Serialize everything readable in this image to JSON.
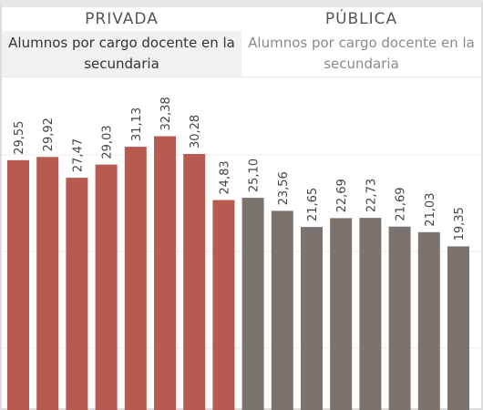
{
  "panels": [
    {
      "title": "PRIVADA",
      "subtitle": "Alumnos por cargo docente en la secundaria"
    },
    {
      "title": "PÚBLICA",
      "subtitle": "Alumnos por cargo docente en la secundaria"
    }
  ],
  "colors": {
    "privada": "#b85a4f",
    "publica": "#7b746e",
    "gridline": "#ebebeb"
  },
  "chart_data": [
    {
      "type": "bar",
      "title": "PRIVADA",
      "subtitle": "Alumnos por cargo docente en la secundaria",
      "values": [
        29.55,
        29.92,
        27.47,
        29.03,
        31.13,
        32.38,
        30.28,
        24.83
      ],
      "labels": [
        "29,55",
        "29,92",
        "27,47",
        "29,03",
        "31,13",
        "32,38",
        "30,28",
        "24,83"
      ],
      "ylim": [
        0,
        42
      ],
      "color": "#b85a4f"
    },
    {
      "type": "bar",
      "title": "PÚBLICA",
      "subtitle": "Alumnos por cargo docente en la secundaria",
      "values": [
        25.1,
        23.56,
        21.65,
        22.69,
        22.73,
        21.69,
        21.03,
        19.35
      ],
      "labels": [
        "25,10",
        "23,56",
        "21,65",
        "22,69",
        "22,73",
        "21,69",
        "21,03",
        "19,35"
      ],
      "ylim": [
        0,
        42
      ],
      "color": "#7b746e"
    }
  ]
}
